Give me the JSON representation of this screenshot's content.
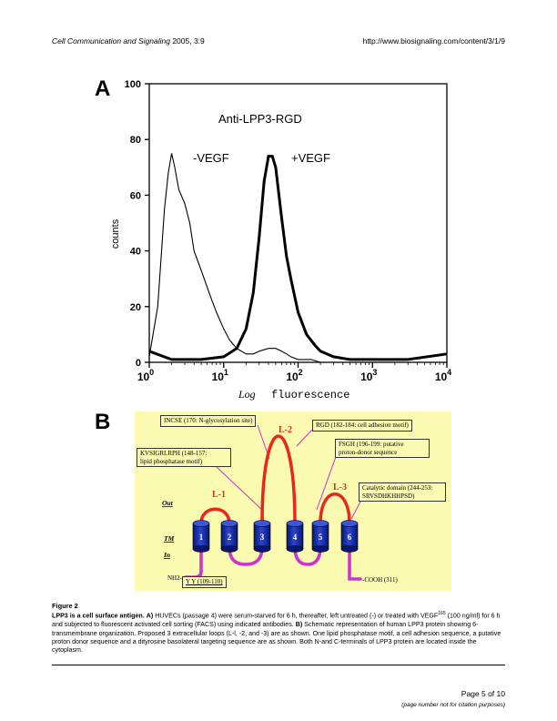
{
  "header": {
    "journal": "Cell Communication and Signaling",
    "year_volume": "2005, 3:9",
    "url": "http://www.biosignaling.com/content/3/1/9"
  },
  "panel_a": {
    "letter": "A",
    "inset_title": "Anti-LPP3-RGD",
    "label_neg": "-VEGF",
    "label_pos": "+VEGF",
    "ylabel": "counts",
    "xlabel_1": "Log",
    "xlabel_2": "fluorescence",
    "y_ticks": [
      "0",
      "20",
      "40",
      "60",
      "80",
      "100"
    ],
    "x_ticks_base": [
      "10",
      "10",
      "10",
      "10",
      "10"
    ],
    "x_ticks_exp": [
      "0",
      "1",
      "2",
      "3",
      "4"
    ]
  },
  "chart_data": {
    "type": "line",
    "title": "Anti-LPP3-RGD",
    "xlabel": "Log fluorescence",
    "ylabel": "counts",
    "x_scale": "log",
    "xlim": [
      1,
      10000
    ],
    "ylim": [
      0,
      100
    ],
    "grid": false,
    "series": [
      {
        "name": "-VEGF",
        "x": [
          1,
          1.3,
          1.6,
          1.8,
          2.0,
          2.2,
          2.5,
          3.0,
          3.5,
          4.0,
          5.0,
          6.0,
          7.0,
          8.0,
          10,
          12,
          15,
          20,
          25,
          30,
          40,
          50,
          60,
          70,
          80,
          100,
          150,
          200,
          300,
          500,
          1000,
          10000
        ],
        "y": [
          2,
          20,
          55,
          68,
          75,
          70,
          62,
          57,
          50,
          40,
          33,
          27,
          22,
          18,
          12,
          8,
          5,
          3,
          3,
          4,
          5,
          5,
          4,
          3,
          2,
          1,
          1,
          0,
          0,
          0,
          0,
          0
        ]
      },
      {
        "name": "+VEGF",
        "x": [
          1,
          2,
          5,
          10,
          15,
          20,
          25,
          30,
          35,
          40,
          45,
          50,
          60,
          70,
          80,
          100,
          130,
          170,
          200,
          300,
          500,
          1000,
          3000,
          10000
        ],
        "y": [
          4,
          1,
          1,
          2,
          5,
          12,
          25,
          45,
          65,
          74,
          74,
          70,
          52,
          38,
          30,
          18,
          10,
          6,
          4,
          2,
          1,
          1,
          1,
          3
        ]
      }
    ]
  },
  "panel_b": {
    "letter": "B",
    "callouts": {
      "incse": "INCSE (170: N-glycosylation site)",
      "rgd": "RGD (182-184: cell adhesion motif)",
      "kvsig_1": "KVSIGRLRPH (148-157:",
      "kvsig_2": "lipid phosphatase motif)",
      "fsgh_1": "FSGH  (196-199: putative",
      "fsgh_2": "proton-donor sequence",
      "cat_1": "Catalytic domain (244-253:",
      "cat_2": "SRVSDHKHHPSD)",
      "yy": "Y Y (109-110)"
    },
    "loops": [
      "L-1",
      "L-2",
      "L-3"
    ],
    "regions": [
      "Out",
      "TM",
      "In"
    ],
    "tm_numbers": [
      "1",
      "2",
      "3",
      "4",
      "5",
      "6"
    ],
    "n_term": "NH2-",
    "c_term": "-COOH (311)",
    "colors": {
      "background": "#fafab0",
      "extracellular_loop": "#e8281c",
      "intracellular_loop": "#cc33cc",
      "tm_cylinder": "#1a2fa8",
      "pointer": "#cc33cc"
    }
  },
  "caption": {
    "figure_label": "Figure 2",
    "title": "LPP3 is a cell surface antigen.",
    "part_a_label": "A)",
    "part_a_text_1": " HUVECs (passage 4) were serum-starved for 6 h, thereafter, left untreated (-) or treated with VEGF",
    "part_a_sup": "165",
    "part_a_text_2": " (100 ng/ml) for 6 h and subjected to fluorescent activated cell sorting (FACS) using indicated antibodies. ",
    "part_b_label": "B)",
    "part_b_text": " Schematic representation of human LPP3 protein showing 6-transmembrane organization. Proposed 3 extracellular loops (L-l, -2, and -3) are as shown. One lipid phosphatase motif, a cell adhesion sequence, a putative proton donor sequence and a dityrosine basolateral targeting sequence are as shown. Both N-and C-terminals of LPP3 protein are located inside the cytoplasm."
  },
  "footer": {
    "page": "Page 5 of 10",
    "note": "(page number not for citation purposes)"
  }
}
